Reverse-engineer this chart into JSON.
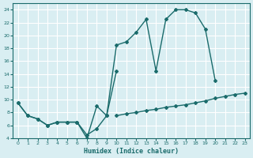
{
  "xlabel": "Humidex (Indice chaleur)",
  "bg_color": "#d9eef2",
  "grid_color": "#ffffff",
  "line_color": "#1a6b6b",
  "xlim": [
    -0.5,
    23.5
  ],
  "ylim": [
    4,
    25
  ],
  "yticks": [
    4,
    6,
    8,
    10,
    12,
    14,
    16,
    18,
    20,
    22,
    24
  ],
  "xticks": [
    0,
    1,
    2,
    3,
    4,
    5,
    6,
    7,
    8,
    9,
    10,
    11,
    12,
    13,
    14,
    15,
    16,
    17,
    18,
    19,
    20,
    21,
    22,
    23
  ],
  "series": [
    {
      "x": [
        0,
        1,
        2,
        3,
        4,
        5,
        6,
        7,
        8,
        9,
        10,
        11,
        12,
        13,
        14,
        15,
        16,
        17,
        18,
        19,
        20
      ],
      "y": [
        9.5,
        7.5,
        7.0,
        6.0,
        6.5,
        6.5,
        6.5,
        4.0,
        9.0,
        7.5,
        18.5,
        19.0,
        20.5,
        22.5,
        14.5,
        22.5,
        24.0,
        24.0,
        23.5,
        21.0,
        13.0
      ]
    },
    {
      "x": [
        0,
        1,
        2,
        3,
        4,
        5,
        6,
        7,
        8,
        9,
        10
      ],
      "y": [
        9.5,
        7.5,
        7.0,
        6.0,
        6.5,
        6.5,
        6.5,
        4.5,
        5.5,
        7.5,
        14.5
      ]
    },
    {
      "x": [
        10,
        11,
        12,
        13,
        14,
        15,
        16,
        17,
        18,
        19,
        20,
        21,
        22,
        23
      ],
      "y": [
        7.5,
        7.8,
        8.0,
        8.3,
        8.5,
        8.8,
        9.0,
        9.2,
        9.5,
        9.8,
        10.2,
        10.5,
        10.8,
        11.0
      ]
    }
  ]
}
